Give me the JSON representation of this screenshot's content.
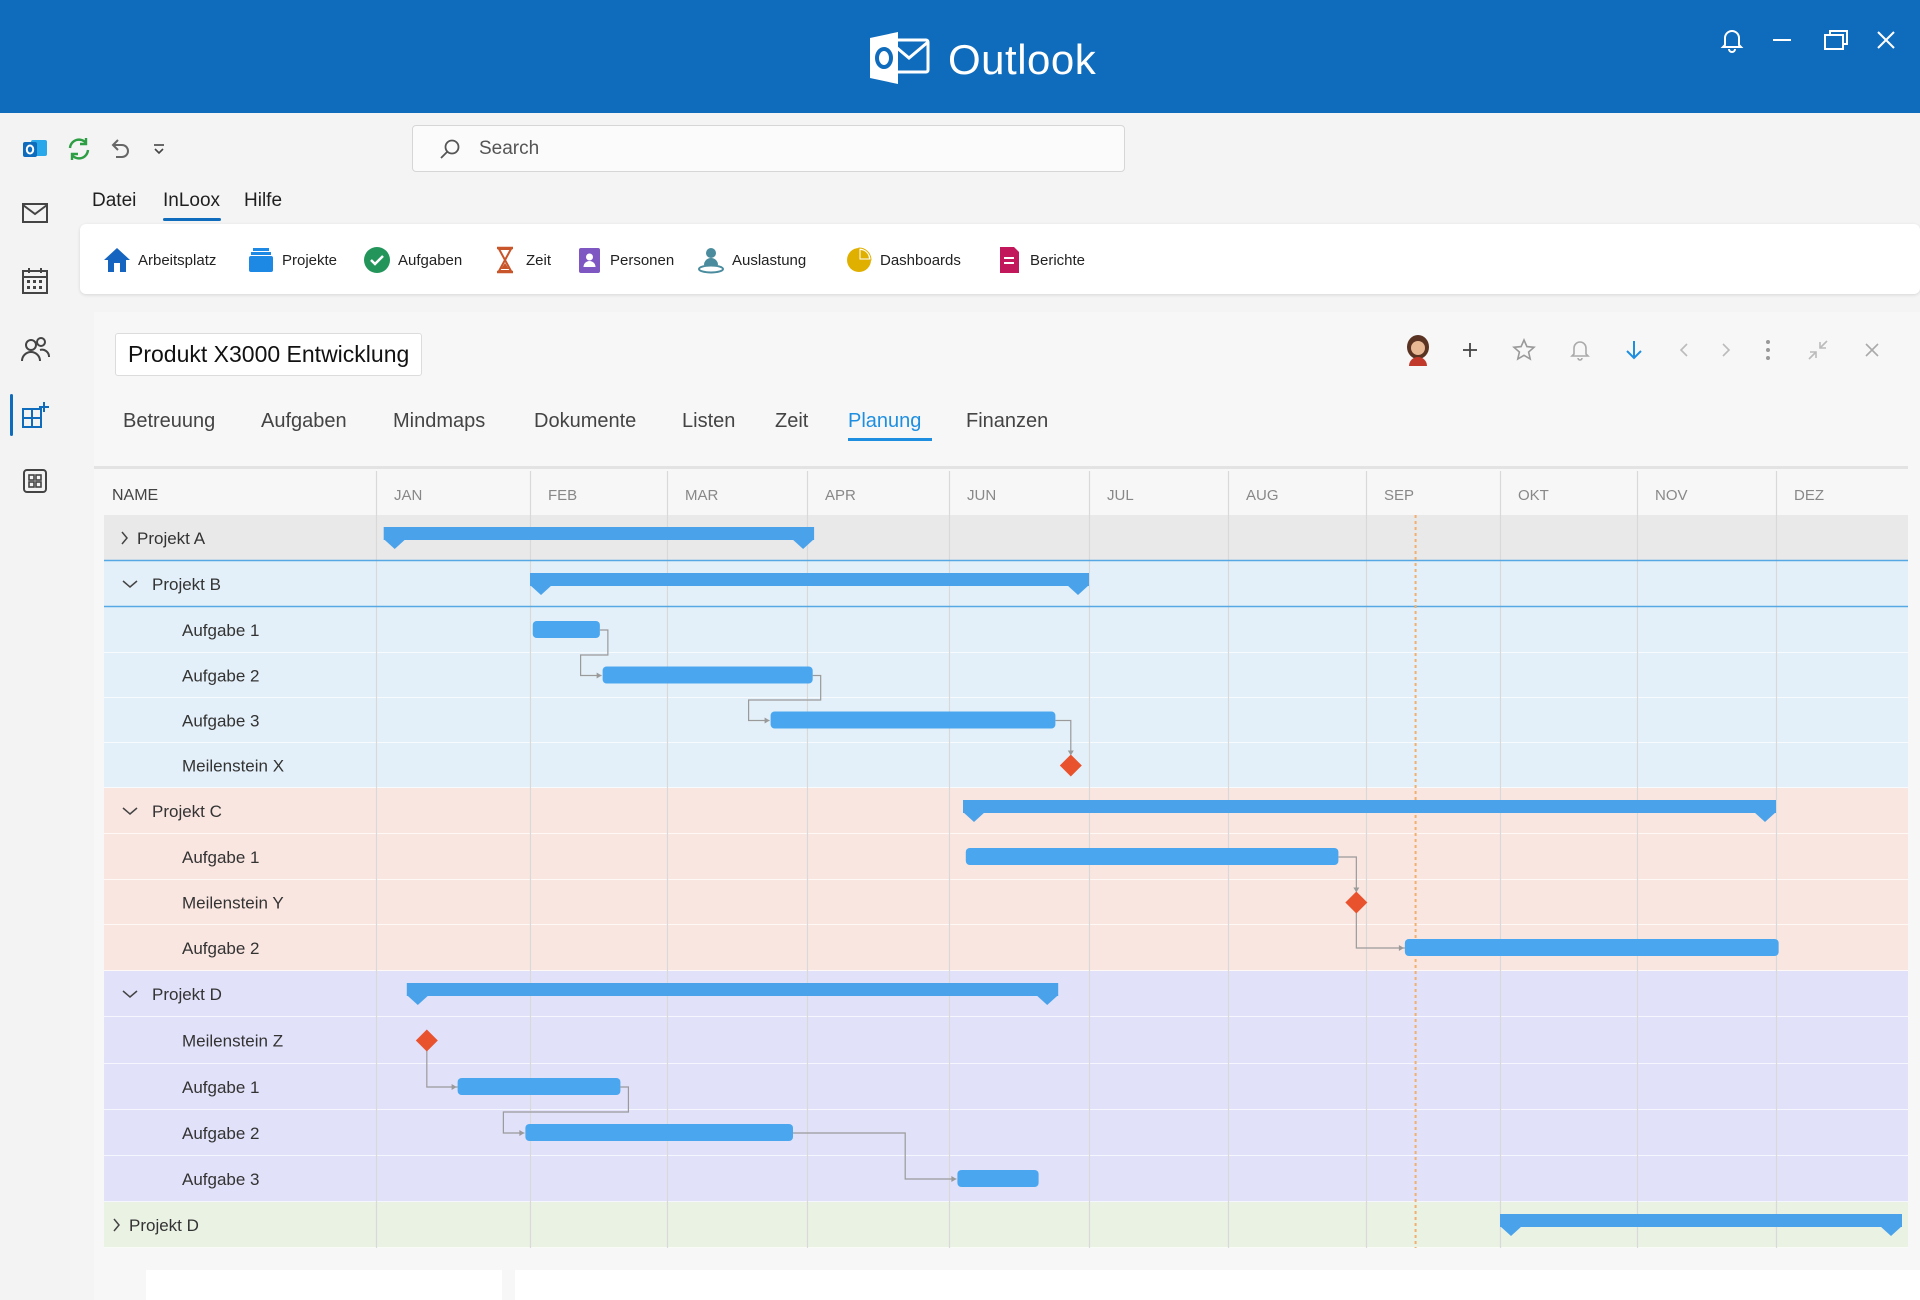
{
  "window": {
    "title": "Outlook"
  },
  "search": {
    "placeholder": "Search"
  },
  "menu": {
    "items": [
      "Datei",
      "InLoox",
      "Hilfe"
    ]
  },
  "ribbon": {
    "buttons": [
      {
        "label": "Arbeitsplatz",
        "icon": "home-icon"
      },
      {
        "label": "Projekte",
        "icon": "projects-icon"
      },
      {
        "label": "Aufgaben",
        "icon": "tasks-check-icon"
      },
      {
        "label": "Zeit",
        "icon": "hourglass-icon"
      },
      {
        "label": "Personen",
        "icon": "contacts-icon"
      },
      {
        "label": "Auslastung",
        "icon": "workload-icon"
      },
      {
        "label": "Dashboards",
        "icon": "pie-chart-icon"
      },
      {
        "label": "Berichte",
        "icon": "report-icon"
      }
    ]
  },
  "project": {
    "title": "Produkt X3000 Entwicklung",
    "tabs": [
      "Betreuung",
      "Aufgaben",
      "Mindmaps",
      "Dokumente",
      "Listen",
      "Zeit",
      "Planung",
      "Finanzen"
    ],
    "active_tab": "Planung"
  },
  "colors": {
    "brand": "#0f6cbd",
    "bar": "#4aa7ef",
    "summary_bar": "#4aa3ea",
    "milestone": "#e8532e",
    "today_line": "#f0b070",
    "group_gray": "#e9e9e9",
    "group_blue": "#e4f0f9",
    "group_red": "#fae6e1",
    "group_purple": "#e1e1fa",
    "group_green": "#eaf2e4"
  },
  "gantt": {
    "name_header": "NAME",
    "months": [
      "JAN",
      "FEB",
      "MAR",
      "APR",
      "JUN",
      "JUL",
      "AUG",
      "SEP",
      "OKT",
      "NOV",
      "DEZ"
    ],
    "today_month_pos": 7.37,
    "rows": [
      {
        "label": "Projekt A",
        "level": 0,
        "expander": "collapsed",
        "group": "gray",
        "type": "summary",
        "start": 0.05,
        "end": 3.05
      },
      {
        "label": "Projekt B",
        "level": 0,
        "expander": "expanded",
        "group": "blue",
        "type": "summary",
        "start": 1.0,
        "end": 5.0
      },
      {
        "label": "Aufgabe 1",
        "level": 1,
        "group": "blue",
        "type": "task",
        "start": 1.02,
        "end": 1.51
      },
      {
        "label": "Aufgabe 2",
        "level": 1,
        "group": "blue",
        "type": "task",
        "start": 1.53,
        "end": 3.04
      },
      {
        "label": "Aufgabe 3",
        "level": 1,
        "group": "blue",
        "type": "task",
        "start": 2.74,
        "end": 4.76
      },
      {
        "label": "Meilenstein X",
        "level": 1,
        "group": "blue",
        "type": "milestone",
        "at": 4.87
      },
      {
        "label": "Projekt C",
        "level": 0,
        "expander": "expanded",
        "group": "red",
        "type": "summary",
        "start": 4.1,
        "end": 10.0
      },
      {
        "label": "Aufgabe 1",
        "level": 1,
        "group": "red",
        "type": "task",
        "start": 4.12,
        "end": 6.8
      },
      {
        "label": "Meilenstein Y",
        "level": 1,
        "group": "red",
        "type": "milestone",
        "at": 6.93
      },
      {
        "label": "Aufgabe 2",
        "level": 1,
        "group": "red",
        "type": "task",
        "start": 7.29,
        "end": 10.02
      },
      {
        "label": "Projekt D",
        "level": 0,
        "expander": "expanded",
        "group": "purple",
        "type": "summary",
        "start": 0.2,
        "end": 4.78
      },
      {
        "label": "Meilenstein Z",
        "level": 1,
        "group": "purple",
        "type": "milestone",
        "at": 0.33
      },
      {
        "label": "Aufgabe 1",
        "level": 1,
        "group": "purple",
        "type": "task",
        "start": 0.53,
        "end": 1.66
      },
      {
        "label": "Aufgabe 2",
        "level": 1,
        "group": "purple",
        "type": "task",
        "start": 0.97,
        "end": 2.9
      },
      {
        "label": "Aufgabe 3",
        "level": 1,
        "group": "purple",
        "type": "task",
        "start": 4.06,
        "end": 4.64
      },
      {
        "label": "Projekt D",
        "level": 0,
        "expander": "collapsed",
        "group": "green",
        "type": "summary",
        "start": 8.0,
        "end": 11.0
      }
    ],
    "links": [
      {
        "from": 2,
        "to": 3
      },
      {
        "from": 3,
        "to": 4
      },
      {
        "from": 4,
        "to": 5
      },
      {
        "from": 7,
        "to": 8
      },
      {
        "from": 8,
        "to": 9
      },
      {
        "from": 11,
        "to": 12
      },
      {
        "from": 12,
        "to": 13
      },
      {
        "from": 13,
        "to": 14
      }
    ]
  }
}
